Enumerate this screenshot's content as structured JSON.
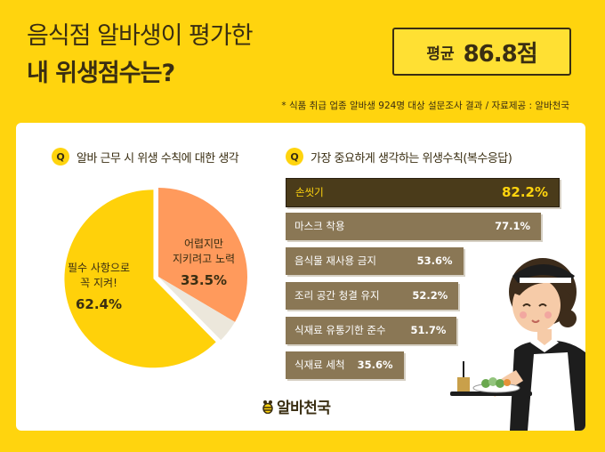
{
  "header": {
    "title_line1": "음식점 알바생이 평가한",
    "title_line2": "내 위생점수는?",
    "average_label": "평균",
    "average_value": "86.8점",
    "source_note": "* 식품 취급 업종 알바생 924명 대상 설문조사 결과 / 자료제공 : 알바천국"
  },
  "left_question": {
    "badge": "Q",
    "text": "알바 근무 시 위생 수칙에 대한 생각"
  },
  "right_question": {
    "badge": "Q",
    "text": "가장 중요하게 생각하는 위생수칙(복수응답)"
  },
  "brand": {
    "logo_text": "알바천국"
  },
  "colors": {
    "background": "#FFD40E",
    "panel": "#FFFFFF",
    "text_dark": "#3A2E12",
    "bar_top": "#4A3B1A",
    "bar_other": "#8A7755",
    "pie_main": "#FFD10A",
    "pie_second": "#FF9A5C",
    "pie_rest": "#ECE7DB"
  },
  "chart_data": [
    {
      "type": "pie",
      "title": "알바 근무 시 위생 수칙에 대한 생각",
      "slices": [
        {
          "label_lines": [
            "필수 사항으로",
            "꼭 지켜!"
          ],
          "value": 62.4,
          "display": "62.4%",
          "color": "#FFD10A"
        },
        {
          "label_lines": [
            "어렵지만",
            "지키려고 노력"
          ],
          "value": 33.5,
          "display": "33.5%",
          "color": "#FF9A5C"
        },
        {
          "label_lines": [],
          "value": 4.1,
          "display": "",
          "color": "#ECE7DB"
        }
      ]
    },
    {
      "type": "bar",
      "orientation": "horizontal",
      "title": "가장 중요하게 생각하는 위생수칙(복수응답)",
      "categories": [
        "손씻기",
        "마스크 착용",
        "음식물 재사용 금지",
        "조리 공간 청결 유지",
        "식재료 유통기한 준수",
        "식재료 세척"
      ],
      "values": [
        82.2,
        77.1,
        53.6,
        52.2,
        51.7,
        35.6
      ],
      "value_labels": [
        "82.2%",
        "77.1%",
        "53.6%",
        "52.2%",
        "51.7%",
        "35.6%"
      ],
      "xlim": [
        0,
        82.2
      ]
    }
  ]
}
